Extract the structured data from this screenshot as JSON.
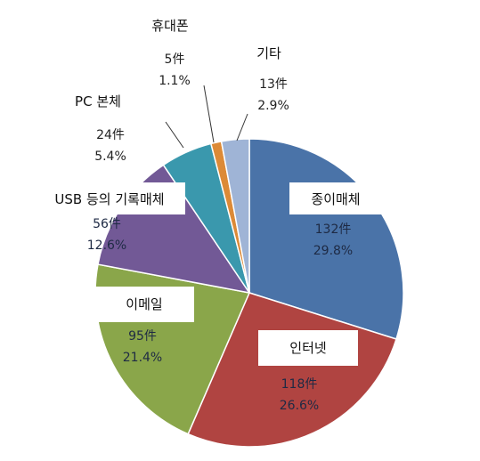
{
  "chart_data": {
    "type": "pie",
    "slices": [
      {
        "label": "종이매체",
        "count": "132件",
        "percent": "29.8%",
        "value": 29.8,
        "color": "#4a73a8"
      },
      {
        "label": "인터넷",
        "count": "118件",
        "percent": "26.6%",
        "value": 26.6,
        "color": "#b04441"
      },
      {
        "label": "이메일",
        "count": "95件",
        "percent": "21.4%",
        "value": 21.4,
        "color": "#8aa64a"
      },
      {
        "label": "USB 등의  기록매체",
        "count": "56件",
        "percent": "12.6%",
        "value": 12.6,
        "color": "#725996"
      },
      {
        "label": "PC 본체",
        "count": "24件",
        "percent": "5.4%",
        "value": 5.4,
        "color": "#3a98ad"
      },
      {
        "label": "휴대폰",
        "count": "5件",
        "percent": "1.1%",
        "value": 1.1,
        "color": "#dc8a37"
      },
      {
        "label": "기타",
        "count": "13件",
        "percent": "2.9%",
        "value": 2.9,
        "color": "#9fb4d6"
      }
    ]
  }
}
